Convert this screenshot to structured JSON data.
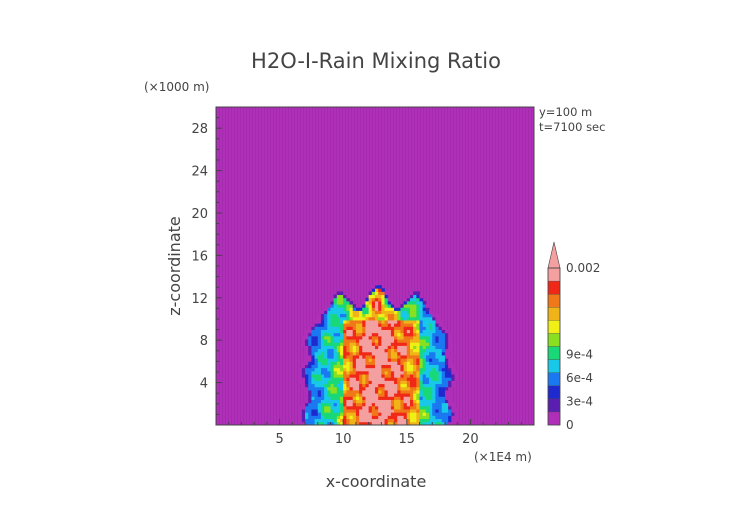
{
  "chart_data": {
    "type": "heatmap",
    "title": "H2O-I-Rain Mixing Ratio",
    "xlabel": "x-coordinate",
    "ylabel": "z-coordinate",
    "x_unit": "(×1E4 m)",
    "y_unit": "(×1000 m)",
    "annotations": [
      "y=100 m",
      "t=7100 sec"
    ],
    "xlim": [
      0,
      25
    ],
    "ylim": [
      0,
      30
    ],
    "x_ticks": [
      5,
      10,
      15,
      20
    ],
    "y_ticks": [
      4,
      8,
      12,
      16,
      20,
      24,
      28
    ],
    "x_tick_labels": [
      "5",
      "10",
      "15",
      "20"
    ],
    "y_tick_labels": [
      "4",
      "8",
      "12",
      "16",
      "20",
      "24",
      "28"
    ],
    "colorbar": {
      "max": 0.002,
      "labels": [
        {
          "text": "0.002",
          "value": 0.002
        },
        {
          "text": "9e-4",
          "value": 0.0009
        },
        {
          "text": "6e-4",
          "value": 0.0006
        },
        {
          "text": "3e-4",
          "value": 0.0003
        },
        {
          "text": "0",
          "value": 0
        }
      ],
      "colors": [
        "#b02fb8",
        "#5a1fb0",
        "#1e2ad0",
        "#1a78f0",
        "#18c8e8",
        "#18d878",
        "#88e020",
        "#f0f018",
        "#f0b418",
        "#f07818",
        "#f02818",
        "#f4a0a0"
      ]
    },
    "background_color": "#b02fb8",
    "field_summary": {
      "description_values": "Rain mixing ratio ~0 everywhere except a convective region centred near x≈12.5, z≈0–12.5 with peaks above 0.002",
      "region_x": [
        6.5,
        19
      ],
      "region_z_top": 12.5,
      "peak_value": 0.002
    }
  }
}
